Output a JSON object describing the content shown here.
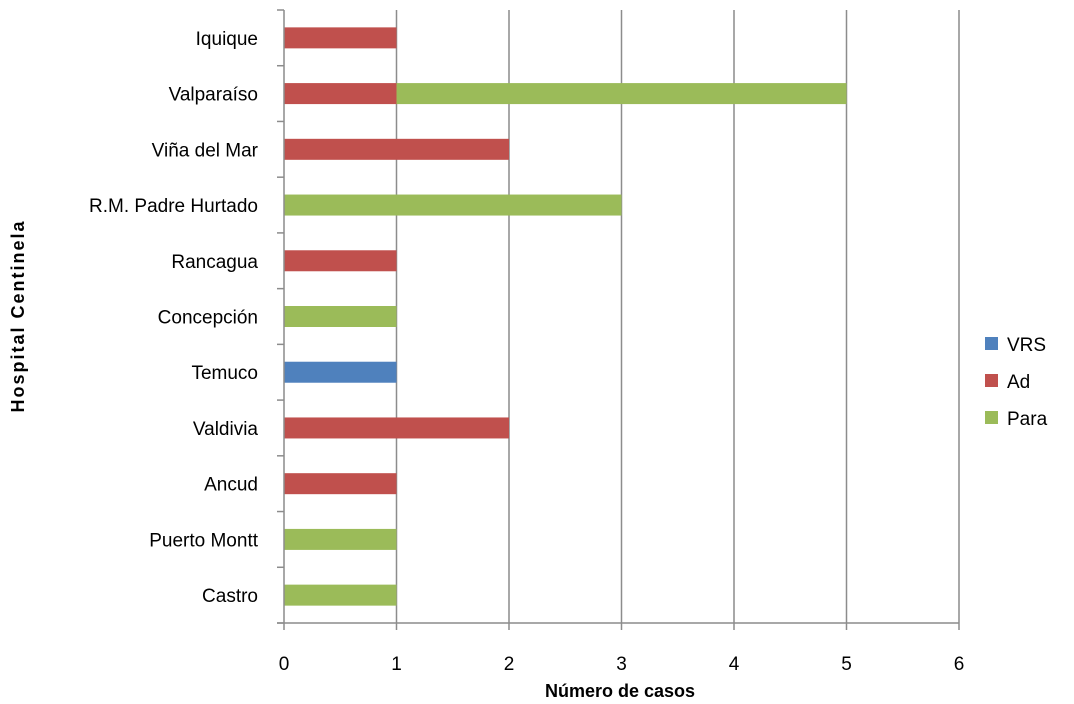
{
  "chart_data": {
    "type": "bar",
    "orientation": "horizontal",
    "stacked": true,
    "xlabel": "Número de casos",
    "ylabel": "Hospital Centinela",
    "xlim": [
      0,
      6
    ],
    "xticks": [
      "0",
      "1",
      "2",
      "3",
      "4",
      "5",
      "6"
    ],
    "grid": "vertical",
    "legend_position": "right",
    "categories": [
      "Iquique",
      "Valparaíso",
      "Viña del Mar",
      "R.M. Padre Hurtado",
      "Rancagua",
      "Concepción",
      "Temuco",
      "Valdivia",
      "Ancud",
      "Puerto Montt",
      "Castro"
    ],
    "series": [
      {
        "name": "VRS",
        "color": "#4f81bd",
        "values": [
          0,
          0,
          0,
          0,
          0,
          0,
          1,
          0,
          0,
          0,
          0
        ]
      },
      {
        "name": "Ad",
        "color": "#c0504d",
        "values": [
          1,
          1,
          2,
          0,
          1,
          0,
          0,
          2,
          1,
          0,
          0
        ]
      },
      {
        "name": "Para",
        "color": "#9bbb59",
        "values": [
          0,
          4,
          0,
          3,
          0,
          1,
          0,
          0,
          0,
          1,
          1
        ]
      }
    ]
  }
}
